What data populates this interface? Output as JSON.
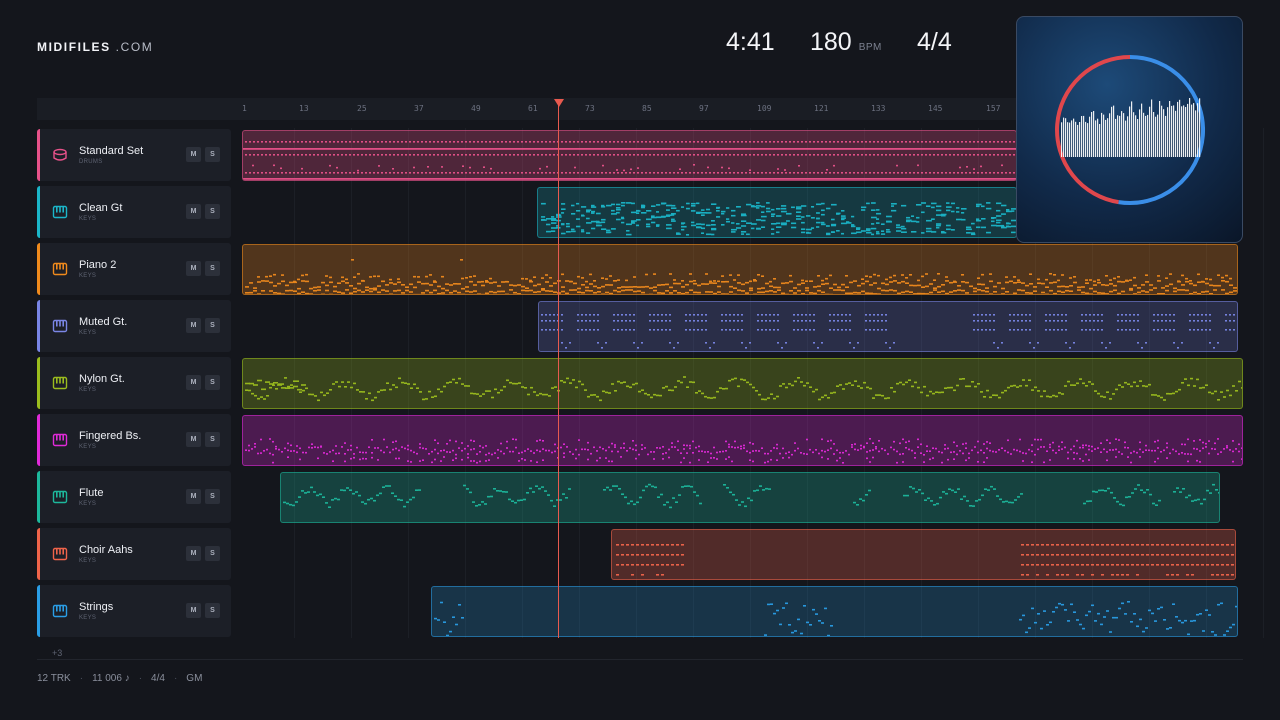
{
  "header": {
    "logo_bold": "MIDIFILES",
    "logo_domain": ".COM",
    "time": "4:41",
    "bpm": "180",
    "bpm_unit": "BPM",
    "time_signature": "4/4"
  },
  "ruler": {
    "ticks": [
      "1",
      "13",
      "25",
      "37",
      "49",
      "61",
      "73",
      "85",
      "97",
      "109",
      "121",
      "133",
      "145",
      "157"
    ]
  },
  "playhead": {
    "bar": 67
  },
  "tracks": [
    {
      "name": "Standard Set",
      "category": "DRUMS",
      "color": "#e8528a",
      "icon": "drum-icon",
      "mute": "M",
      "solo": "S"
    },
    {
      "name": "Clean Gt",
      "category": "KEYS",
      "color": "#1bb6c9",
      "icon": "piano-icon",
      "mute": "M",
      "solo": "S"
    },
    {
      "name": "Piano 2",
      "category": "KEYS",
      "color": "#f08a1c",
      "icon": "piano-icon",
      "mute": "M",
      "solo": "S"
    },
    {
      "name": "Muted Gt.",
      "category": "KEYS",
      "color": "#7a86e6",
      "icon": "piano-icon",
      "mute": "M",
      "solo": "S"
    },
    {
      "name": "Nylon Gt.",
      "category": "KEYS",
      "color": "#9bbd1e",
      "icon": "piano-icon",
      "mute": "M",
      "solo": "S"
    },
    {
      "name": "Fingered Bs.",
      "category": "KEYS",
      "color": "#e02ad8",
      "icon": "piano-icon",
      "mute": "M",
      "solo": "S"
    },
    {
      "name": "Flute",
      "category": "KEYS",
      "color": "#1db89c",
      "icon": "piano-icon",
      "mute": "M",
      "solo": "S"
    },
    {
      "name": "Choir Aahs",
      "category": "KEYS",
      "color": "#f0644a",
      "icon": "piano-icon",
      "mute": "M",
      "solo": "S"
    },
    {
      "name": "Strings",
      "category": "KEYS",
      "color": "#2a9ee6",
      "icon": "piano-icon",
      "mute": "M",
      "solo": "S"
    }
  ],
  "more_tracks": "+3",
  "footer": {
    "tracks": "12 TRK",
    "notes": "11 006 ♪",
    "meter": "4/4",
    "standard": "GM"
  },
  "visualizer": {
    "ring_colors": [
      "#e0474c",
      "#3a8ee8"
    ]
  }
}
